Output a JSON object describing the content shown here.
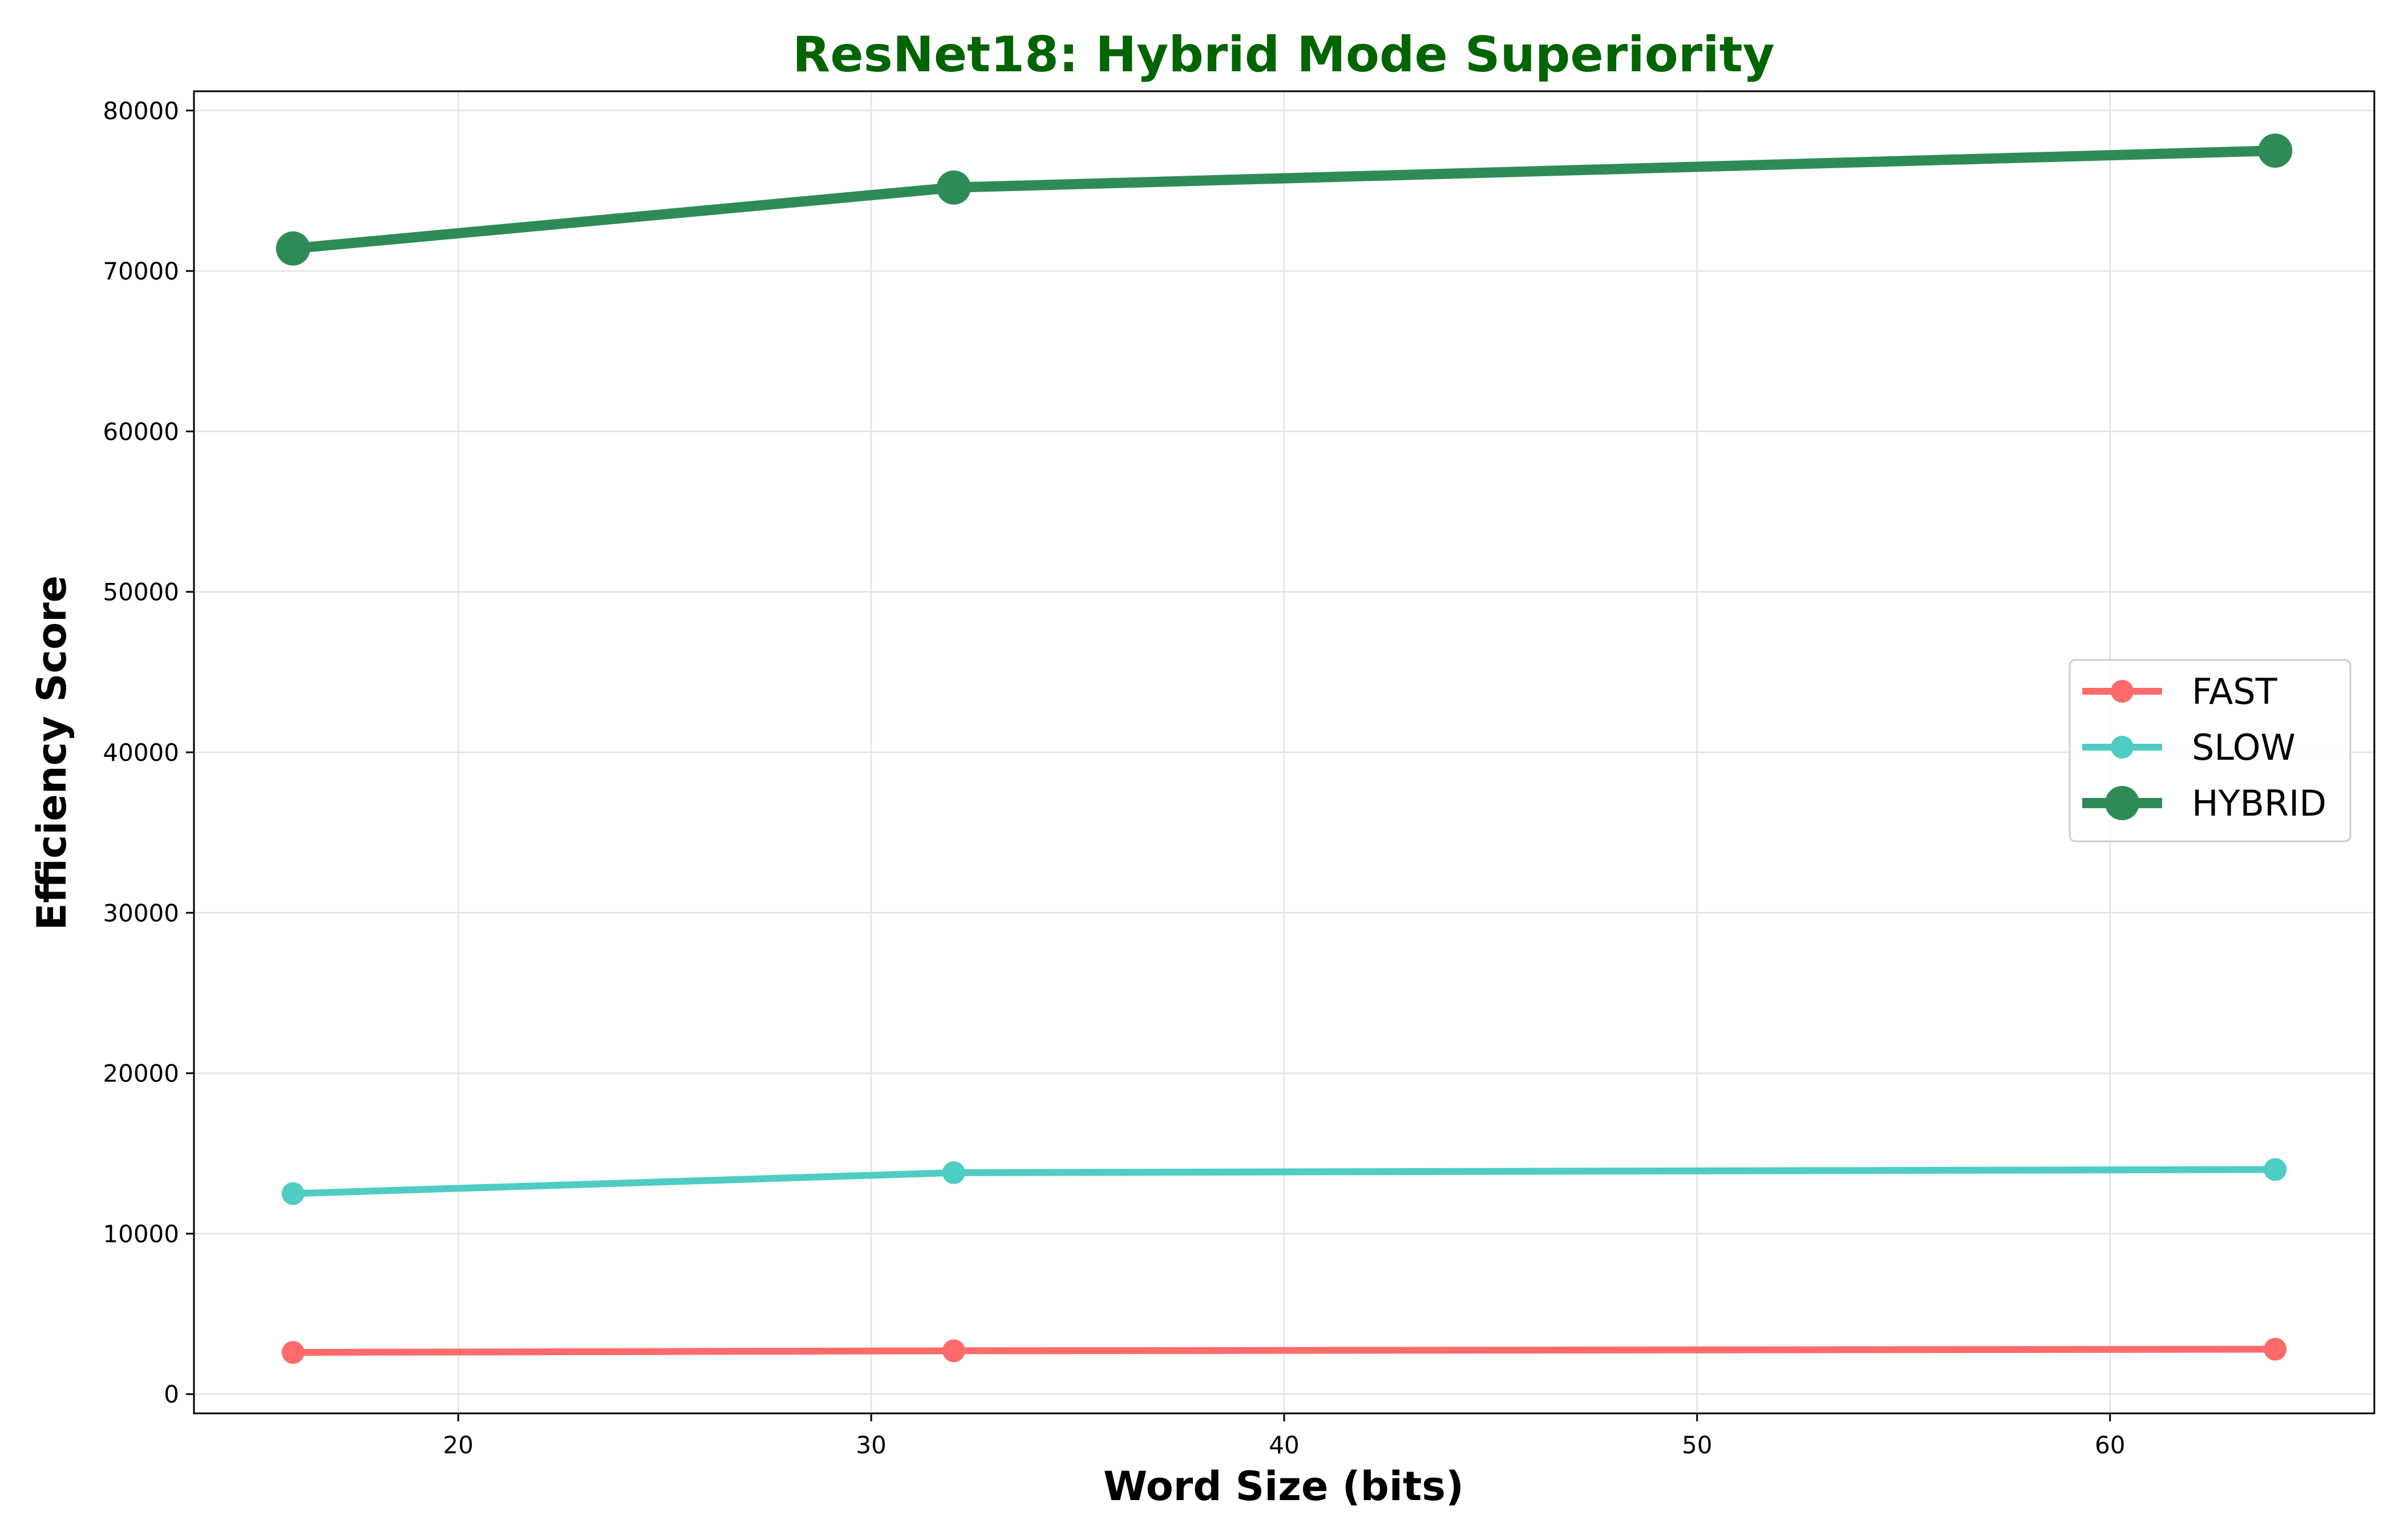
{
  "chart_data": {
    "type": "line",
    "title": "ResNet18: Hybrid Mode Superiority",
    "title_color": "#006400",
    "xlabel": "Word Size (bits)",
    "ylabel": "Efficiency Score",
    "x": [
      16,
      32,
      64
    ],
    "xlim": [
      13.6,
      66.4
    ],
    "ylim": [
      -1200,
      81200
    ],
    "xticks": [
      20,
      30,
      40,
      50,
      60
    ],
    "yticks": [
      0,
      10000,
      20000,
      30000,
      40000,
      50000,
      60000,
      70000,
      80000
    ],
    "grid": true,
    "legend_position": "center-right",
    "series": [
      {
        "name": "FAST",
        "values": [
          2600,
          2700,
          2800
        ],
        "color": "#ff6b6b",
        "weight": "normal"
      },
      {
        "name": "SLOW",
        "values": [
          12500,
          13800,
          14000
        ],
        "color": "#4ecdc4",
        "weight": "normal"
      },
      {
        "name": "HYBRID",
        "values": [
          71400,
          75200,
          77500
        ],
        "color": "#2e8b57",
        "weight": "bold"
      }
    ]
  }
}
